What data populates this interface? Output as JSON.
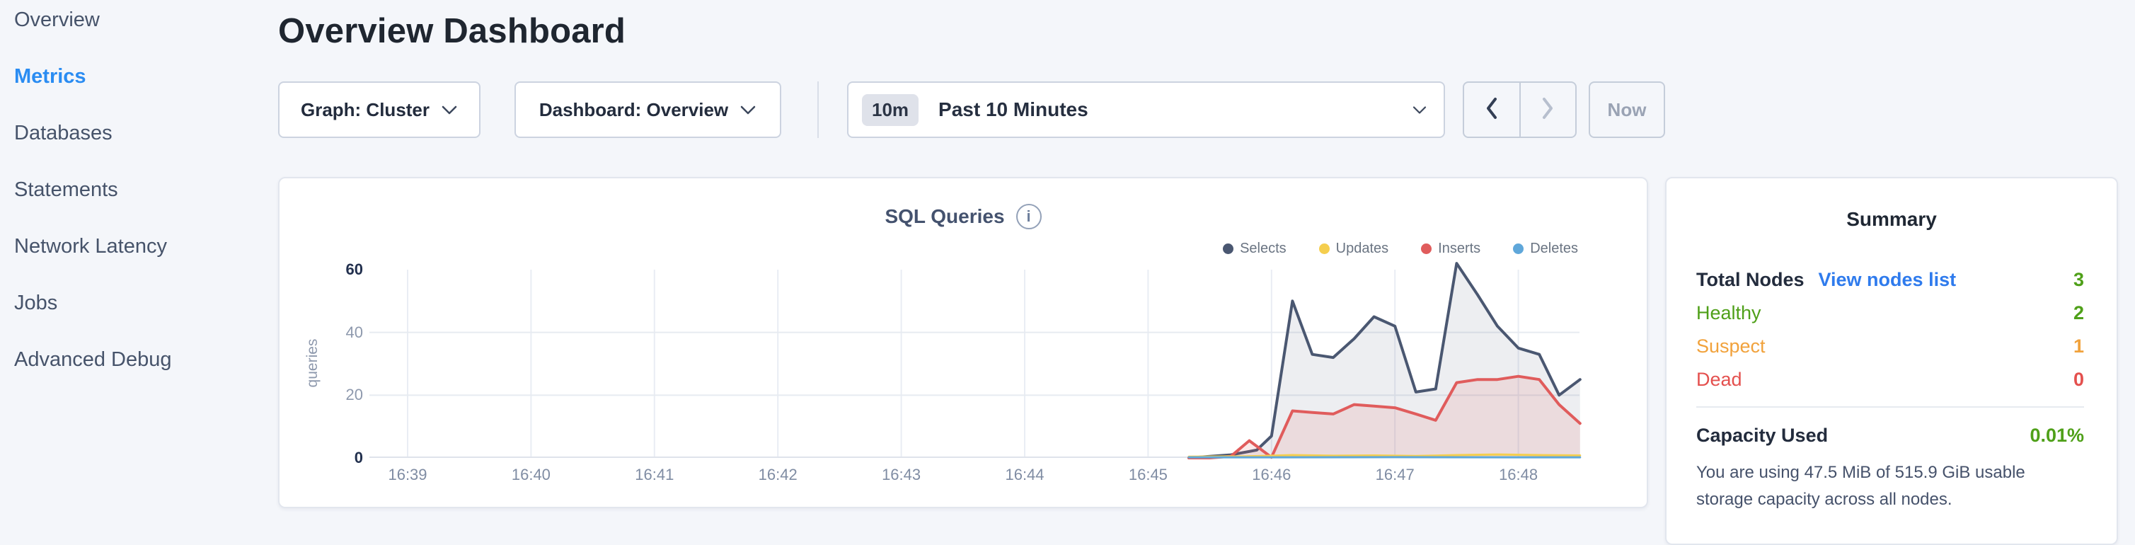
{
  "sidebar": {
    "items": [
      {
        "label": "Overview",
        "active": false
      },
      {
        "label": "Metrics",
        "active": true
      },
      {
        "label": "Databases",
        "active": false
      },
      {
        "label": "Statements",
        "active": false
      },
      {
        "label": "Network Latency",
        "active": false
      },
      {
        "label": "Jobs",
        "active": false
      },
      {
        "label": "Advanced Debug",
        "active": false
      }
    ]
  },
  "header": {
    "title": "Overview Dashboard"
  },
  "controls": {
    "graph_dropdown_label": "Graph: Cluster",
    "dashboard_dropdown_label": "Dashboard: Overview",
    "time_range_badge": "10m",
    "time_range_label": "Past 10 Minutes",
    "now_label": "Now",
    "icons": {
      "dropdown": "chevron-down-icon",
      "previous": "chevron-left-icon",
      "next": "chevron-right-icon",
      "info": "info-circle-icon"
    }
  },
  "chart_card": {
    "title": "SQL Queries",
    "info_glyph": "i"
  },
  "chart_data": {
    "type": "area",
    "title": "SQL Queries",
    "xlabel": "",
    "ylabel": "queries",
    "ylim": [
      0,
      60
    ],
    "y_ticks": [
      0,
      20,
      40,
      60
    ],
    "grid": true,
    "legend_position": "top-right",
    "x_unit": "minutes after 16:39",
    "x_range": [
      0,
      9.5
    ],
    "x_ticks": [
      {
        "t": 0,
        "label": "16:39"
      },
      {
        "t": 1,
        "label": "16:40"
      },
      {
        "t": 2,
        "label": "16:41"
      },
      {
        "t": 3,
        "label": "16:42"
      },
      {
        "t": 4,
        "label": "16:43"
      },
      {
        "t": 5,
        "label": "16:44"
      },
      {
        "t": 6,
        "label": "16:45"
      },
      {
        "t": 7,
        "label": "16:46"
      },
      {
        "t": 8,
        "label": "16:47"
      },
      {
        "t": 9,
        "label": "16:48"
      }
    ],
    "series": [
      {
        "name": "Selects",
        "color": "#4a5771",
        "fill": "rgba(74,87,113,0.10)",
        "width": 4,
        "z": 1,
        "points": [
          [
            6.33,
            0
          ],
          [
            6.5,
            0.5
          ],
          [
            6.67,
            1
          ],
          [
            6.88,
            2.5
          ],
          [
            7.0,
            7
          ],
          [
            7.17,
            50
          ],
          [
            7.33,
            33
          ],
          [
            7.5,
            32
          ],
          [
            7.67,
            38
          ],
          [
            7.83,
            45
          ],
          [
            8.0,
            42
          ],
          [
            8.17,
            21
          ],
          [
            8.33,
            22
          ],
          [
            8.5,
            62
          ],
          [
            8.67,
            52
          ],
          [
            8.83,
            42
          ],
          [
            9.0,
            35
          ],
          [
            9.17,
            33
          ],
          [
            9.33,
            20
          ],
          [
            9.5,
            25
          ]
        ]
      },
      {
        "name": "Updates",
        "color": "#f5ce4e",
        "fill": "rgba(245,206,78,0.18)",
        "width": 3,
        "z": 3,
        "points": [
          [
            6.33,
            0.4
          ],
          [
            6.8,
            0.5
          ],
          [
            7.17,
            0.9
          ],
          [
            7.5,
            0.7
          ],
          [
            7.83,
            0.8
          ],
          [
            8.17,
            0.6
          ],
          [
            8.5,
            0.9
          ],
          [
            8.83,
            1.1
          ],
          [
            9.17,
            0.9
          ],
          [
            9.5,
            0.8
          ]
        ]
      },
      {
        "name": "Inserts",
        "color": "#e05c5c",
        "fill": "rgba(224,92,92,0.13)",
        "width": 4,
        "z": 2,
        "points": [
          [
            6.33,
            0
          ],
          [
            6.5,
            0
          ],
          [
            6.67,
            0.5
          ],
          [
            6.82,
            5.5
          ],
          [
            7.0,
            0.2
          ],
          [
            7.17,
            15
          ],
          [
            7.33,
            14.5
          ],
          [
            7.5,
            14
          ],
          [
            7.67,
            17
          ],
          [
            7.83,
            16.5
          ],
          [
            8.0,
            16
          ],
          [
            8.17,
            14
          ],
          [
            8.33,
            12
          ],
          [
            8.5,
            24
          ],
          [
            8.67,
            25
          ],
          [
            8.83,
            25
          ],
          [
            9.0,
            26
          ],
          [
            9.17,
            25
          ],
          [
            9.33,
            17
          ],
          [
            9.5,
            11
          ]
        ]
      },
      {
        "name": "Deletes",
        "color": "#5fa7da",
        "fill": "rgba(95,167,218,0.15)",
        "width": 3,
        "z": 4,
        "points": [
          [
            6.33,
            0.2
          ],
          [
            7.0,
            0.2
          ],
          [
            8.0,
            0.25
          ],
          [
            9.0,
            0.2
          ],
          [
            9.5,
            0.2
          ]
        ]
      }
    ]
  },
  "summary": {
    "title": "Summary",
    "total_nodes_label": "Total Nodes",
    "view_nodes_link": "View nodes list",
    "total_nodes_value": "3",
    "healthy_label": "Healthy",
    "healthy_value": "2",
    "suspect_label": "Suspect",
    "suspect_value": "1",
    "dead_label": "Dead",
    "dead_value": "0",
    "capacity_label": "Capacity Used",
    "capacity_value": "0.01%",
    "capacity_description": "You are using 47.5 MiB of 515.9 GiB usable storage capacity across all nodes.",
    "colors": {
      "healthy": "#4fa019",
      "suspect": "#f1a23c",
      "dead": "#e4504e",
      "link": "#2f7bed"
    }
  }
}
